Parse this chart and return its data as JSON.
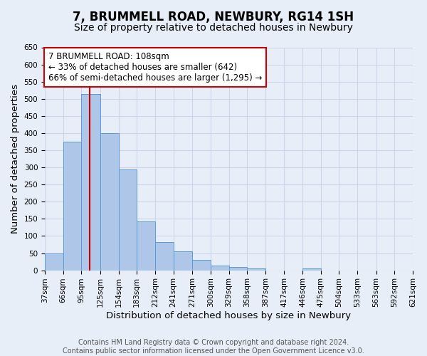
{
  "title": "7, BRUMMELL ROAD, NEWBURY, RG14 1SH",
  "subtitle": "Size of property relative to detached houses in Newbury",
  "xlabel": "Distribution of detached houses by size in Newbury",
  "ylabel": "Number of detached properties",
  "bar_values": [
    50,
    375,
    515,
    400,
    293,
    143,
    82,
    55,
    30,
    13,
    10,
    5,
    0,
    0,
    5,
    0,
    0,
    0,
    0,
    0
  ],
  "bin_edges": [
    37,
    66,
    95,
    125,
    154,
    183,
    212,
    241,
    271,
    300,
    329,
    358,
    387,
    417,
    446,
    475,
    504,
    533,
    563,
    592,
    621
  ],
  "bar_color": "#aec6e8",
  "bar_edge_color": "#5b9bd5",
  "grid_color": "#ccd6e8",
  "background_color": "#e8eef8",
  "vline_x": 108,
  "vline_color": "#cc0000",
  "annotation_line1": "7 BRUMMELL ROAD: 108sqm",
  "annotation_line2": "← 33% of detached houses are smaller (642)",
  "annotation_line3": "66% of semi-detached houses are larger (1,295) →",
  "annotation_box_facecolor": "#ffffff",
  "annotation_box_edgecolor": "#cc0000",
  "ylim": [
    0,
    650
  ],
  "yticks": [
    0,
    50,
    100,
    150,
    200,
    250,
    300,
    350,
    400,
    450,
    500,
    550,
    600,
    650
  ],
  "footer_line1": "Contains HM Land Registry data © Crown copyright and database right 2024.",
  "footer_line2": "Contains public sector information licensed under the Open Government Licence v3.0.",
  "title_fontsize": 12,
  "subtitle_fontsize": 10,
  "axis_label_fontsize": 9.5,
  "tick_fontsize": 7.5,
  "annotation_fontsize": 8.5,
  "footer_fontsize": 7
}
